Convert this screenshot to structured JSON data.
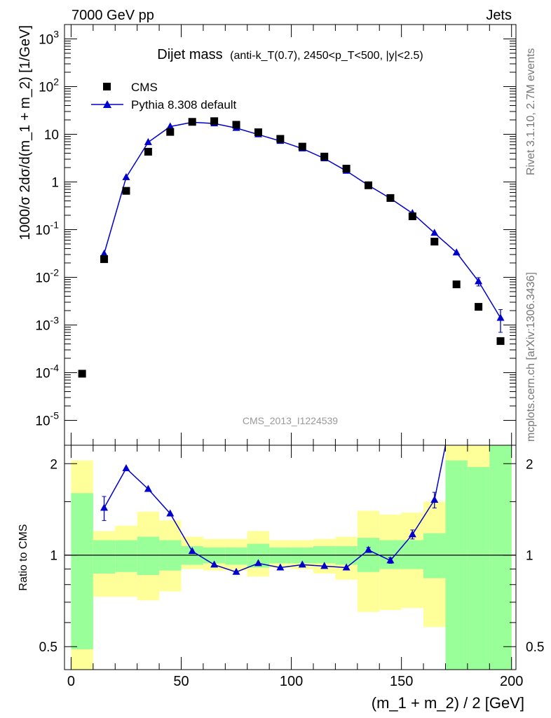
{
  "header": {
    "left": "7000 GeV pp",
    "right": "Jets",
    "side_top": "Rivet 3.1.10,  2.7M events",
    "side_bottom": "mcplots.cern.ch [arXiv:1306.3436]"
  },
  "watermark": "CMS_2013_I1224539",
  "colors": {
    "mc": "#0000cc",
    "data": "#000000",
    "band_inner": "#99ff99",
    "band_outer": "#ffff99"
  },
  "chart_data": [
    {
      "type": "scatter",
      "title": "Dijet mass",
      "title_detail": "(anti-k_T(0.7), 2450<p_T<500, |y|<2.5)",
      "ylabel": "1000/σ 2dσ/d(m_1 + m_2) [1/GeV]",
      "yscale": "log",
      "ylim": [
        3e-06,
        2000
      ],
      "xlim": [
        -3,
        202
      ],
      "legend_position": "top-left",
      "series": [
        {
          "name": "CMS",
          "marker": "square",
          "x": [
            5,
            15,
            25,
            35,
            45,
            55,
            65,
            75,
            85,
            95,
            105,
            115,
            125,
            135,
            145,
            155,
            165,
            175,
            185,
            195
          ],
          "values": [
            9.5e-05,
            0.024,
            0.65,
            4.3,
            11.2,
            18.2,
            18.8,
            15.8,
            11.0,
            8.0,
            5.5,
            3.4,
            1.9,
            0.85,
            0.46,
            0.19,
            0.056,
            0.0071,
            0.0024,
            0.00046
          ]
        },
        {
          "name": "Pythia 8.308 default",
          "marker": "triangle",
          "x": [
            15,
            25,
            35,
            45,
            55,
            65,
            75,
            85,
            95,
            105,
            115,
            125,
            135,
            145,
            155,
            165,
            175,
            185,
            195
          ],
          "values": [
            0.031,
            1.25,
            6.8,
            14.5,
            17.8,
            16.8,
            13.5,
            9.9,
            7.2,
            5.0,
            3.1,
            1.7,
            0.85,
            0.45,
            0.22,
            0.085,
            0.033,
            0.0082,
            0.0014
          ],
          "err_rel": [
            0.1,
            0.03,
            0.02,
            0.02,
            0.02,
            0.02,
            0.02,
            0.02,
            0.02,
            0.02,
            0.02,
            0.03,
            0.03,
            0.04,
            0.05,
            0.06,
            0.08,
            0.2,
            0.5
          ]
        }
      ]
    },
    {
      "type": "line",
      "ylabel": "Ratio to CMS",
      "xlabel": "(m_1 + m_2) / 2 [GeV]",
      "yscale": "log",
      "ylim": [
        0.42,
        2.3
      ],
      "xlim": [
        -3,
        202
      ],
      "yticks": [
        "0.5",
        "1",
        "2"
      ],
      "xticks": [
        "0",
        "50",
        "100",
        "150",
        "200"
      ],
      "bands": [
        {
          "x0": 0,
          "x1": 10,
          "inner": [
            0.49,
            1.6
          ],
          "outer": [
            0.37,
            2.05
          ]
        },
        {
          "x0": 10,
          "x1": 20,
          "inner": [
            0.87,
            1.12
          ],
          "outer": [
            0.73,
            1.2
          ]
        },
        {
          "x0": 20,
          "x1": 30,
          "inner": [
            0.88,
            1.12
          ],
          "outer": [
            0.73,
            1.25
          ]
        },
        {
          "x0": 30,
          "x1": 40,
          "inner": [
            0.86,
            1.15
          ],
          "outer": [
            0.71,
            1.39
          ]
        },
        {
          "x0": 40,
          "x1": 50,
          "inner": [
            0.89,
            1.12
          ],
          "outer": [
            0.76,
            1.3
          ]
        },
        {
          "x0": 50,
          "x1": 60,
          "inner": [
            0.93,
            1.07
          ],
          "outer": [
            0.9,
            1.15
          ]
        },
        {
          "x0": 60,
          "x1": 70,
          "inner": [
            0.94,
            1.06
          ],
          "outer": [
            0.89,
            1.13
          ]
        },
        {
          "x0": 70,
          "x1": 80,
          "inner": [
            0.93,
            1.06
          ],
          "outer": [
            0.89,
            1.13
          ]
        },
        {
          "x0": 80,
          "x1": 90,
          "inner": [
            0.91,
            1.09
          ],
          "outer": [
            0.85,
            1.2
          ]
        },
        {
          "x0": 90,
          "x1": 100,
          "inner": [
            0.94,
            1.06
          ],
          "outer": [
            0.91,
            1.12
          ]
        },
        {
          "x0": 100,
          "x1": 110,
          "inner": [
            0.94,
            1.06
          ],
          "outer": [
            0.9,
            1.12
          ]
        },
        {
          "x0": 110,
          "x1": 120,
          "inner": [
            0.94,
            1.07
          ],
          "outer": [
            0.87,
            1.13
          ]
        },
        {
          "x0": 120,
          "x1": 130,
          "inner": [
            0.93,
            1.07
          ],
          "outer": [
            0.83,
            1.15
          ]
        },
        {
          "x0": 130,
          "x1": 140,
          "inner": [
            0.88,
            1.14
          ],
          "outer": [
            0.65,
            1.4
          ]
        },
        {
          "x0": 140,
          "x1": 150,
          "inner": [
            0.9,
            1.12
          ],
          "outer": [
            0.66,
            1.36
          ]
        },
        {
          "x0": 150,
          "x1": 160,
          "inner": [
            0.9,
            1.12
          ],
          "outer": [
            0.67,
            1.38
          ]
        },
        {
          "x0": 160,
          "x1": 170,
          "inner": [
            0.84,
            1.18
          ],
          "outer": [
            0.58,
            1.5
          ]
        },
        {
          "x0": 170,
          "x1": 180,
          "inner": [
            0.44,
            2.1
          ],
          "outer": [
            0.3,
            2.5
          ]
        },
        {
          "x0": 180,
          "x1": 190,
          "inner": [
            0.3,
            2.5
          ],
          "outer": [
            0.3,
            2.5
          ]
        },
        {
          "x0": 190,
          "x1": 200,
          "inner": [
            0.3,
            2.5
          ],
          "outer": [
            0.3,
            2.5
          ]
        }
      ],
      "band_overrides": {
        "outer_top": [
          [
            170,
            180,
            2.5
          ],
          [
            180,
            190,
            1.95
          ],
          [
            190,
            200,
            2.5
          ]
        ],
        "inner_top": [
          [
            170,
            180,
            2.05
          ],
          [
            180,
            190,
            2.5
          ],
          [
            190,
            200,
            2.5
          ]
        ]
      },
      "series": [
        {
          "name": "Pythia 8.308 default",
          "x": [
            15,
            25,
            35,
            45,
            55,
            65,
            75,
            85,
            95,
            105,
            115,
            125,
            135,
            145,
            155,
            165
          ],
          "values": [
            1.43,
            1.93,
            1.65,
            1.37,
            1.03,
            0.93,
            0.88,
            0.94,
            0.91,
            0.93,
            0.92,
            0.91,
            1.04,
            0.96,
            1.17,
            1.52
          ],
          "err": [
            0.13,
            0.03,
            0.02,
            0.02,
            0.01,
            0.01,
            0.01,
            0.01,
            0.01,
            0.01,
            0.01,
            0.01,
            0.02,
            0.02,
            0.04,
            0.09
          ],
          "exit_to_top_at_x": 170
        }
      ]
    }
  ]
}
